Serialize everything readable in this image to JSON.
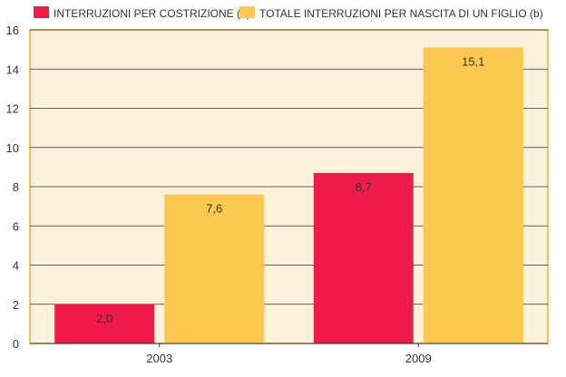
{
  "chart_data": {
    "type": "bar",
    "categories": [
      "2003",
      "2009"
    ],
    "series": [
      {
        "name": "INTERRUZIONI PER COSTRIZIONE (a)",
        "values": [
          2.0,
          8.7
        ],
        "value_labels": [
          "2,0",
          "8,7"
        ],
        "color": "#ee1b4b"
      },
      {
        "name": "TOTALE INTERRUZIONI PER NASCITA DI UN FIGLIO (b)",
        "values": [
          7.6,
          15.1
        ],
        "value_labels": [
          "7,6",
          "15,1"
        ],
        "color": "#fdc84f"
      }
    ],
    "ylim": [
      0,
      16
    ],
    "yticks": [
      0,
      2,
      4,
      6,
      8,
      10,
      12,
      14,
      16
    ],
    "grid": true,
    "legend_position": "top",
    "plot_background": "#fdf1dc",
    "frame_color": "#f7a928"
  }
}
